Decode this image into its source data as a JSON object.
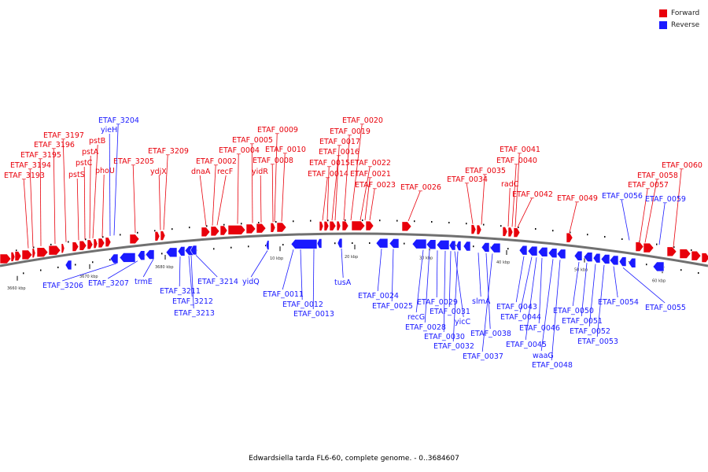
{
  "caption": "Edwardsiella tarda FL6-60, complete genome. - 0..3684607",
  "legend": [
    {
      "label": "Forward",
      "color": "#e8000b"
    },
    {
      "label": "Reverse",
      "color": "#1a1aff"
    }
  ],
  "colors": {
    "forward": "#e8000b",
    "reverse": "#1a1aff",
    "backbone": "#707070"
  },
  "scale_labels": [
    "3660 kbp",
    "3670 kbp",
    "3680 kbp",
    "10 kbp",
    "20 kbp",
    "30 kbp",
    "40 kbp",
    "50 kbp",
    "60 kbp"
  ],
  "forward_labels": [
    "ETAF_3193",
    "ETAF_3194",
    "ETAF_3195",
    "ETAF_3196",
    "ETAF_3197",
    "pstS",
    "pstC",
    "pstA",
    "pstB",
    "phoU",
    "ETAF_3205",
    "ydjX",
    "ETAF_3209",
    "dnaA",
    "recF",
    "ETAF_0002",
    "ETAF_0004",
    "ETAF_0005",
    "yidR",
    "ETAF_0008",
    "ETAF_0009",
    "ETAF_0010",
    "ETAF_0014",
    "ETAF_0015",
    "ETAF_0016",
    "ETAF_0017",
    "ETAF_0019",
    "ETAF_0020",
    "ETAF_0022",
    "ETAF_0021",
    "ETAF_0023",
    "ETAF_0026",
    "ETAF_0034",
    "ETAF_0035",
    "radC",
    "ETAF_0040",
    "ETAF_0041",
    "ETAF_0042",
    "ETAF_0049",
    "ETAF_0057",
    "ETAF_0058",
    "ETAF_0060"
  ],
  "reverse_labels": [
    "ETAF_3204",
    "yieH",
    "ETAF_0056",
    "ETAF_0059",
    "ETAF_3206",
    "ETAF_3207",
    "trmE",
    "ETAF_3211",
    "ETAF_3212",
    "ETAF_3213",
    "ETAF_3214",
    "yidQ",
    "ETAF_0011",
    "ETAF_0012",
    "ETAF_0013",
    "tusA",
    "ETAF_0024",
    "ETAF_0025",
    "recG",
    "ETAF_0028",
    "ETAF_0029",
    "ETAF_0030",
    "ETAF_0031",
    "yicC",
    "ETAF_0032",
    "slmA",
    "ETAF_0038",
    "ETAF_0037",
    "ETAF_0043",
    "ETAF_0044",
    "ETAF_0045",
    "ETAF_0046",
    "waaG",
    "ETAF_0048",
    "ETAF_0050",
    "ETAF_0051",
    "ETAF_0052",
    "ETAF_0053",
    "ETAF_0054",
    "ETAF_0055"
  ]
}
